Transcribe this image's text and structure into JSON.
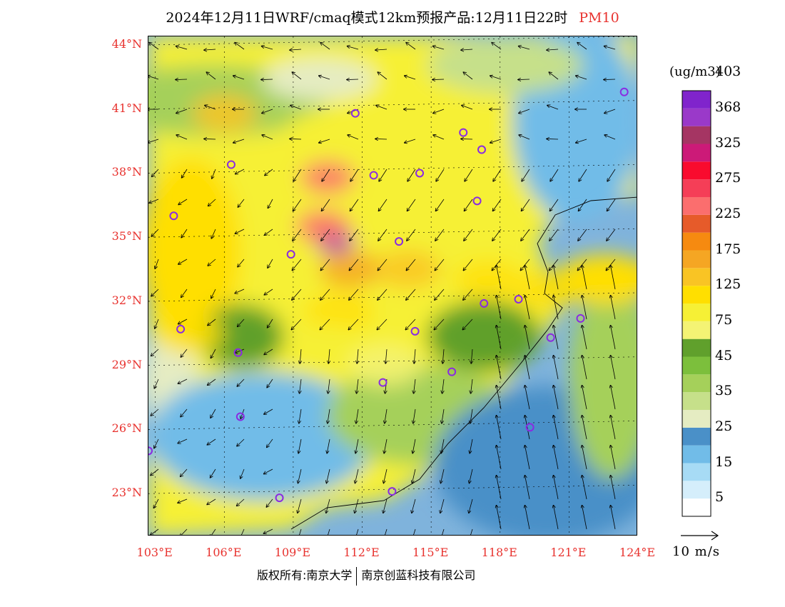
{
  "title": {
    "main": "2024年12月11日WRF/cmaq模式12km预报产品:12月11日22时",
    "product": "PM10",
    "product_color": "#e8322e"
  },
  "map": {
    "lon_range": [
      102.7,
      124.0
    ],
    "lat_range": [
      21.0,
      44.4
    ],
    "lat_ticks": [
      {
        "value": 44,
        "label": "44°N"
      },
      {
        "value": 41,
        "label": "41°N"
      },
      {
        "value": 38,
        "label": "38°N"
      },
      {
        "value": 35,
        "label": "35°N"
      },
      {
        "value": 32,
        "label": "32°N"
      },
      {
        "value": 29,
        "label": "29°N"
      },
      {
        "value": 26,
        "label": "26°N"
      },
      {
        "value": 23,
        "label": "23°N"
      }
    ],
    "lon_ticks": [
      {
        "value": 103,
        "label": "103°E"
      },
      {
        "value": 106,
        "label": "106°E"
      },
      {
        "value": 109,
        "label": "109°E"
      },
      {
        "value": 112,
        "label": "112°E"
      },
      {
        "value": 115,
        "label": "115°E"
      },
      {
        "value": 118,
        "label": "118°E"
      },
      {
        "value": 121,
        "label": "121°E"
      },
      {
        "value": 124,
        "label": "124°E"
      }
    ],
    "city_marker_color": "#8a2be2",
    "cities": [
      {
        "lon": 103.8,
        "lat": 36.0
      },
      {
        "lon": 106.3,
        "lat": 38.4
      },
      {
        "lon": 108.9,
        "lat": 34.2
      },
      {
        "lon": 111.7,
        "lat": 40.8
      },
      {
        "lon": 112.5,
        "lat": 37.9
      },
      {
        "lon": 114.5,
        "lat": 38.0
      },
      {
        "lon": 116.4,
        "lat": 39.9
      },
      {
        "lon": 117.2,
        "lat": 39.1
      },
      {
        "lon": 117.0,
        "lat": 36.7
      },
      {
        "lon": 113.6,
        "lat": 34.8
      },
      {
        "lon": 117.3,
        "lat": 31.9
      },
      {
        "lon": 118.8,
        "lat": 32.1
      },
      {
        "lon": 120.2,
        "lat": 30.3
      },
      {
        "lon": 121.5,
        "lat": 31.2
      },
      {
        "lon": 114.3,
        "lat": 30.6
      },
      {
        "lon": 112.9,
        "lat": 28.2
      },
      {
        "lon": 115.9,
        "lat": 28.7
      },
      {
        "lon": 119.3,
        "lat": 26.1
      },
      {
        "lon": 113.3,
        "lat": 23.1
      },
      {
        "lon": 108.4,
        "lat": 22.8
      },
      {
        "lon": 106.7,
        "lat": 26.6
      },
      {
        "lon": 106.6,
        "lat": 29.6
      },
      {
        "lon": 104.1,
        "lat": 30.7
      },
      {
        "lon": 102.7,
        "lat": 25.0
      },
      {
        "lon": 123.4,
        "lat": 41.8
      }
    ]
  },
  "colorbar": {
    "unit": "(ug/m3)",
    "colors": [
      "#ffffff",
      "#d5eefb",
      "#a7dbf5",
      "#71bce8",
      "#4a90c8",
      "#e5ecc2",
      "#c6e08a",
      "#a5d05a",
      "#7cbf3c",
      "#60a02c",
      "#f4f374",
      "#f6f035",
      "#ffdf00",
      "#f9c424",
      "#f5a623",
      "#f68a10",
      "#e65b2a",
      "#fb6e6e",
      "#f53e57",
      "#f90b2e",
      "#cc1a78",
      "#a53563",
      "#9a39c9",
      "#8024cc"
    ],
    "labels": [
      "5",
      "15",
      "25",
      "35",
      "45",
      "75",
      "125",
      "175",
      "225",
      "275",
      "325",
      "368",
      "403"
    ]
  },
  "pm10_centers": [
    {
      "lon": 110.8,
      "lat": 34.8,
      "level": 22
    },
    {
      "lon": 110.3,
      "lat": 35.5,
      "level": 17
    },
    {
      "lon": 110.5,
      "lat": 37.8,
      "level": 17
    },
    {
      "lon": 111.5,
      "lat": 33.5,
      "level": 14
    },
    {
      "lon": 111.0,
      "lat": 31.5,
      "level": 12
    },
    {
      "lon": 114.0,
      "lat": 33.5,
      "level": 13
    },
    {
      "lon": 117.5,
      "lat": 33.0,
      "level": 12
    },
    {
      "lon": 120.0,
      "lat": 32.5,
      "level": 12
    },
    {
      "lon": 104.5,
      "lat": 30.5,
      "level": 12
    },
    {
      "lon": 106.0,
      "lat": 40.8,
      "level": 13
    },
    {
      "lon": 110.5,
      "lat": 30.0,
      "level": 11
    },
    {
      "lon": 113.0,
      "lat": 29.0,
      "level": 10
    }
  ],
  "wind": {
    "reference_label": "10 m/s"
  },
  "footer": {
    "left": "版权所有:南京大学",
    "right": "南京创蓝科技有限公司"
  }
}
